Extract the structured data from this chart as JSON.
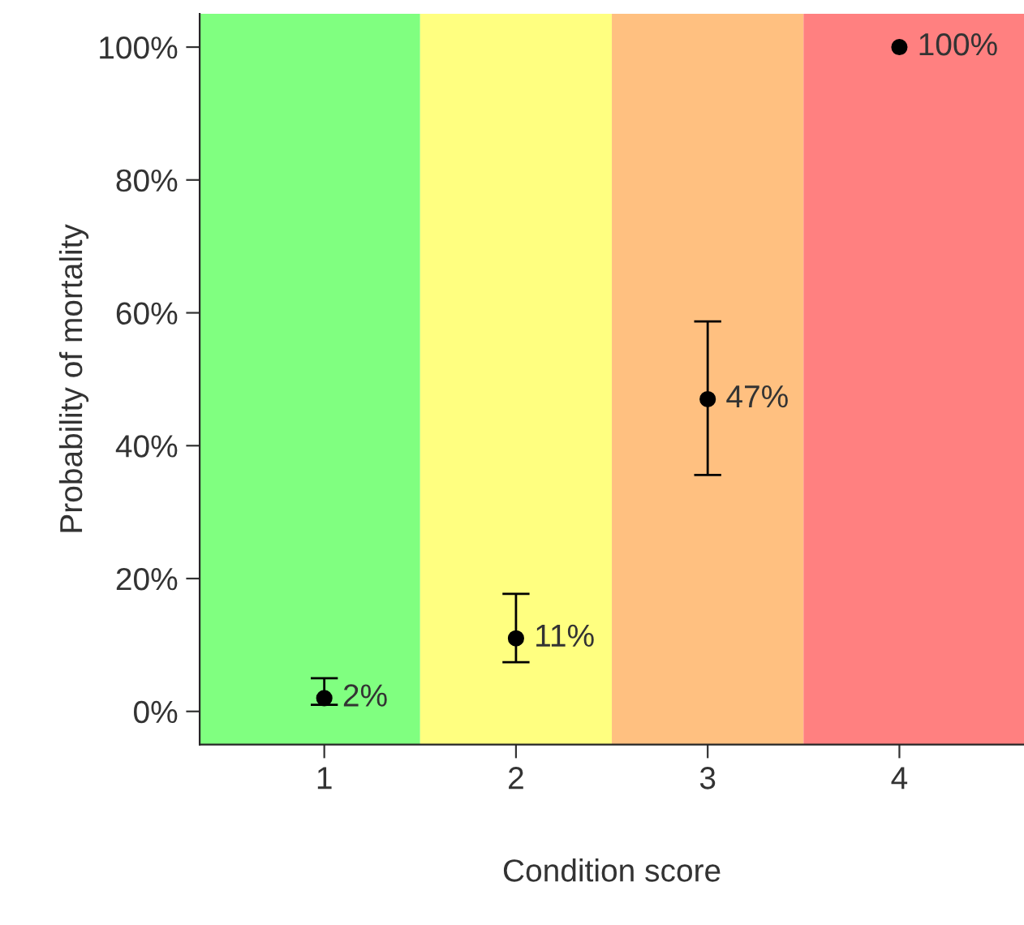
{
  "chart_data": {
    "type": "scatter",
    "xlabel": "Condition score",
    "ylabel": "Probability of mortality",
    "x": [
      1,
      2,
      3,
      4
    ],
    "values": [
      2,
      11,
      47,
      100
    ],
    "color": "#000000",
    "marker": "circle",
    "errors": [
      [
        1,
        5
      ],
      [
        7.4,
        17.7
      ],
      [
        35.6,
        58.7
      ],
      null
    ],
    "value_labels": [
      "2%",
      "11%",
      "47%",
      "100%"
    ],
    "xlim": [
      0.35,
      4.65
    ],
    "xticks": [
      1,
      2,
      3,
      4
    ],
    "ylim": [
      -5,
      105
    ],
    "yticks": [
      {
        "value": 0,
        "label": "0%"
      },
      {
        "value": 20,
        "label": "20%"
      },
      {
        "value": 40,
        "label": "40%"
      },
      {
        "value": 60,
        "label": "60%"
      },
      {
        "value": 80,
        "label": "80%"
      },
      {
        "value": 100,
        "label": "100%"
      }
    ],
    "bands": [
      {
        "axis": "x",
        "from": 0.35,
        "to": 1.5,
        "color": "#80ff80"
      },
      {
        "axis": "x",
        "from": 1.5,
        "to": 2.5,
        "color": "#ffff80"
      },
      {
        "axis": "x",
        "from": 2.5,
        "to": 3.5,
        "color": "#ffc080"
      },
      {
        "axis": "x",
        "from": 3.5,
        "to": 4.65,
        "color": "#ff8080"
      }
    ]
  }
}
